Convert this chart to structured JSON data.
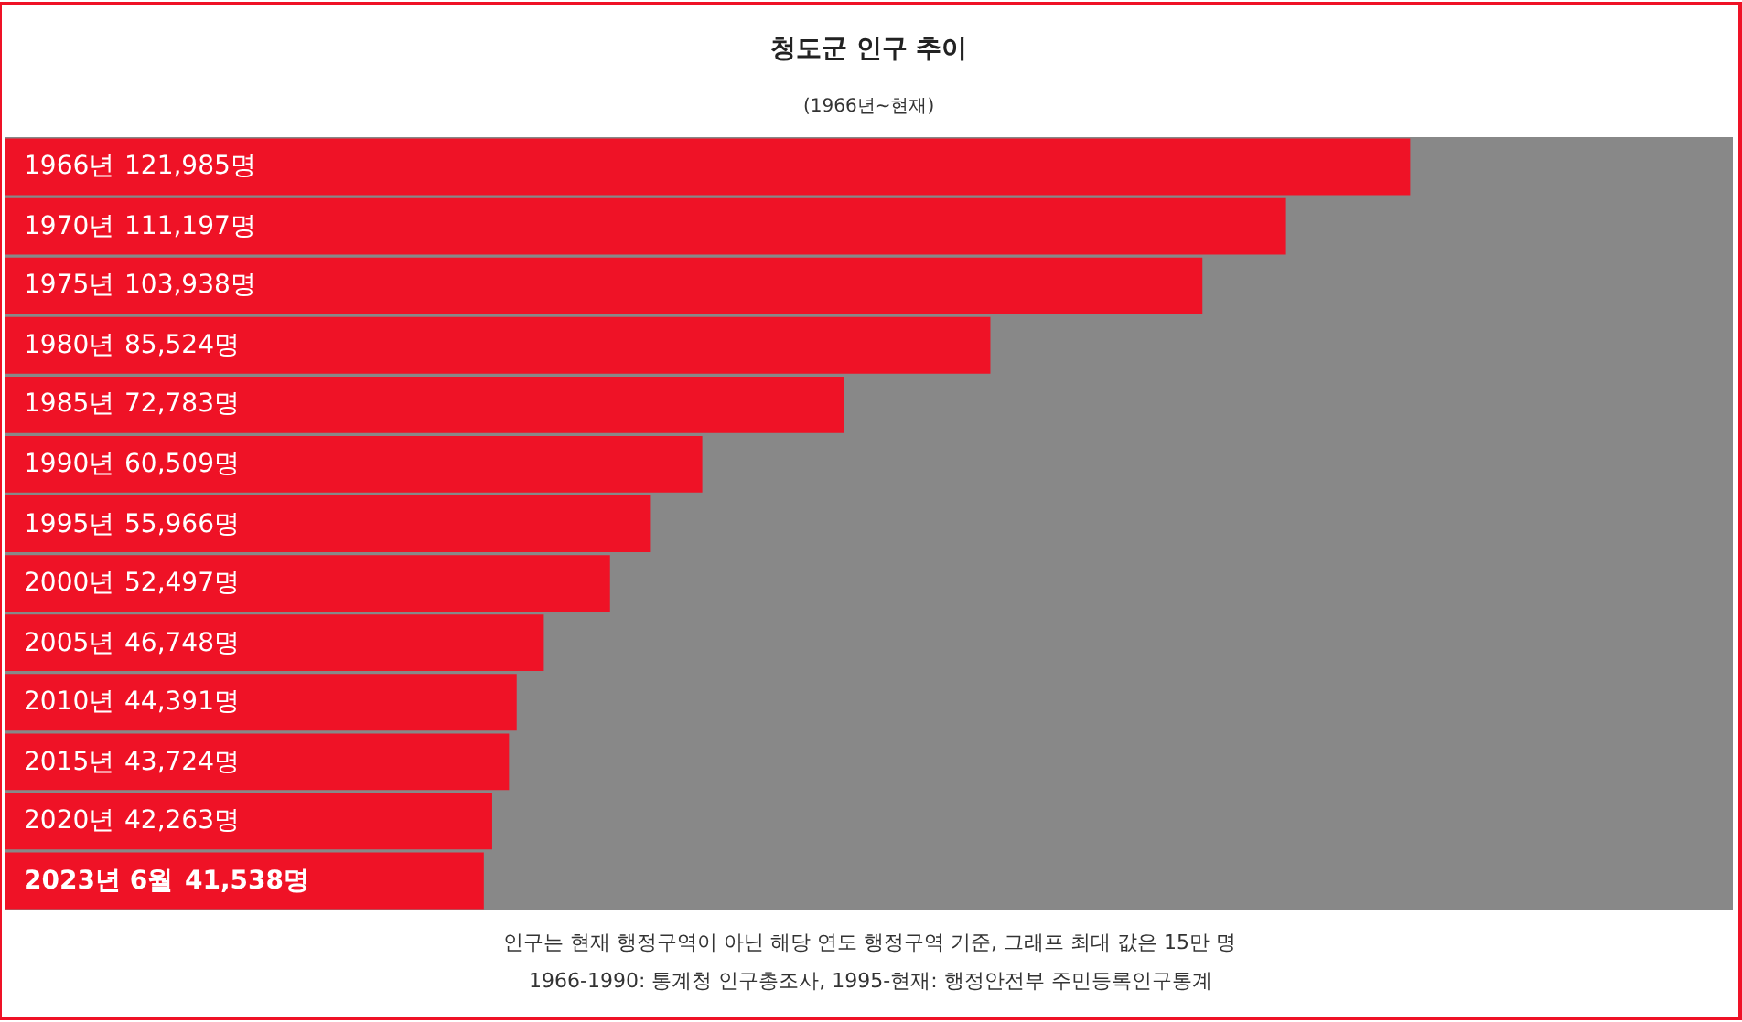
{
  "chart_data": {
    "type": "bar",
    "orientation": "horizontal",
    "title": "청도군 인구 추이",
    "subtitle": "(1966년~현재)",
    "categories": [
      "1966년",
      "1970년",
      "1975년",
      "1980년",
      "1985년",
      "1990년",
      "1995년",
      "2000년",
      "2005년",
      "2010년",
      "2015년",
      "2020년",
      "2023년 6월"
    ],
    "values": [
      121985,
      111197,
      103938,
      85524,
      72783,
      60509,
      55966,
      52497,
      46748,
      44391,
      43724,
      42263,
      41538
    ],
    "value_labels": [
      "121,985명",
      "111,197명",
      "103,938명",
      "85,524명",
      "72,783명",
      "60,509명",
      "55,966명",
      "52,497명",
      "46,748명",
      "44,391명",
      "43,724명",
      "42,263명",
      "41,538명"
    ],
    "color": "#ef1226",
    "xlim": [
      0,
      150000
    ],
    "tick_labels": false,
    "grid": false,
    "legend": false,
    "annotations": [
      "인구는 현재 행정구역이 아닌 해당 연도 행정구역 기준, 그래프 최대 값은 15만 명",
      "1966-1990: 통계청 인구총조사, 1995-현재: 행정안전부 주민등록인구통계"
    ]
  }
}
